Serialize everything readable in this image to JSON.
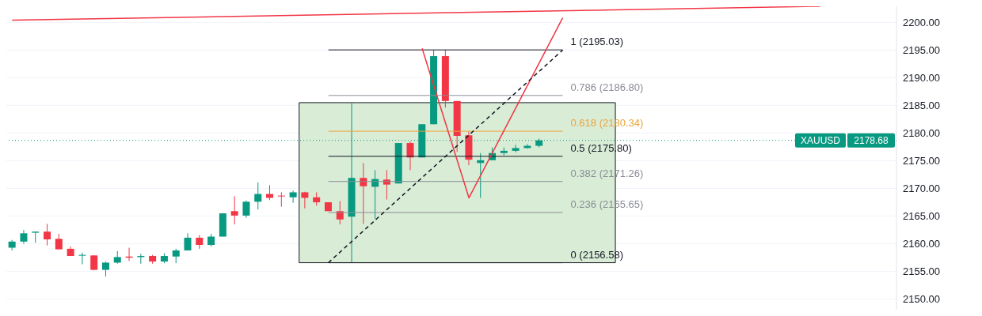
{
  "chart_data": {
    "type": "candlestick",
    "categories": [
      null,
      null,
      null,
      null,
      null,
      null,
      null,
      null,
      null,
      null,
      null,
      null,
      null,
      null,
      null,
      null,
      null,
      null,
      null,
      null,
      null,
      null,
      null,
      null,
      null,
      null,
      null,
      null,
      null,
      null,
      null,
      null,
      null,
      null,
      null,
      null,
      null,
      null,
      null,
      null,
      null,
      null,
      null,
      null,
      null,
      null,
      null,
      null,
      null,
      null,
      null,
      null,
      null,
      null,
      null,
      null,
      null,
      null,
      null,
      null,
      null,
      null,
      null,
      null,
      null,
      null,
      null,
      null,
      null,
      null,
      null,
      null,
      null,
      null,
      null,
      null
    ],
    "ohlc": [
      [
        2159.3,
        2160.7,
        2158.8,
        2160.4
      ],
      [
        2160.4,
        2162.5,
        2160.0,
        2161.9
      ],
      [
        2162.0,
        2162.2,
        2160.2,
        2162.2
      ],
      [
        2162.2,
        2163.6,
        2159.7,
        2160.8
      ],
      [
        2160.9,
        2161.8,
        2159.0,
        2159.0
      ],
      [
        2159.1,
        2159.5,
        2157.8,
        2157.8
      ],
      [
        2157.9,
        2158.4,
        2156.3,
        2158.0
      ],
      [
        2157.9,
        2157.9,
        2155.2,
        2155.3
      ],
      [
        2155.3,
        2156.8,
        2154.1,
        2156.6
      ],
      [
        2156.6,
        2158.7,
        2156.4,
        2157.6
      ],
      [
        2157.7,
        2159.3,
        2156.9,
        2157.5
      ],
      [
        2157.6,
        2158.2,
        2156.4,
        2157.8
      ],
      [
        2157.8,
        2158.0,
        2156.4,
        2156.8
      ],
      [
        2156.8,
        2158.3,
        2156.5,
        2157.8
      ],
      [
        2157.7,
        2159.1,
        2156.5,
        2158.8
      ],
      [
        2158.8,
        2161.9,
        2158.8,
        2161.1
      ],
      [
        2161.1,
        2161.6,
        2159.1,
        2159.8
      ],
      [
        2159.8,
        2161.8,
        2159.5,
        2161.3
      ],
      [
        2161.3,
        2165.5,
        2161.3,
        2165.5
      ],
      [
        2165.9,
        2168.6,
        2163.5,
        2165.1
      ],
      [
        2165.1,
        2167.8,
        2164.7,
        2167.6
      ],
      [
        2167.6,
        2171.1,
        2166.2,
        2169.0
      ],
      [
        2169.0,
        2170.6,
        2167.9,
        2168.3
      ],
      [
        2168.7,
        2169.3,
        2166.7,
        2168.6
      ],
      [
        2168.4,
        2169.6,
        2167.4,
        2169.3
      ],
      [
        2169.3,
        2169.4,
        2166.4,
        2168.3
      ],
      [
        2168.4,
        2169.3,
        2166.9,
        2167.5
      ],
      [
        2167.5,
        2167.5,
        2165.9,
        2165.9
      ],
      [
        2165.9,
        2167.7,
        2163.5,
        2164.4
      ],
      [
        2164.9,
        2185.4,
        2156.6,
        2171.9
      ],
      [
        2171.9,
        2174.6,
        2163.6,
        2170.4
      ],
      [
        2170.3,
        2173.3,
        2164.5,
        2171.7
      ],
      [
        2171.6,
        2173.3,
        2168.0,
        2170.7
      ],
      [
        2170.9,
        2178.2,
        2170.9,
        2178.2
      ],
      [
        2178.2,
        2178.5,
        2173.3,
        2175.6
      ],
      [
        2175.6,
        2181.6,
        2175.6,
        2181.6
      ],
      [
        2181.6,
        2195.0,
        2181.6,
        2193.9
      ],
      [
        2193.9,
        2195.0,
        2184.6,
        2185.8
      ],
      [
        2185.8,
        2185.8,
        2176.6,
        2179.5
      ],
      [
        2179.6,
        2180.3,
        2174.2,
        2175.2
      ],
      [
        2174.6,
        2176.4,
        2168.3,
        2175.1
      ],
      [
        2175.1,
        2177.4,
        2175.1,
        2176.4
      ],
      [
        2176.4,
        2177.4,
        2176.0,
        2176.8
      ],
      [
        2176.8,
        2177.9,
        2176.5,
        2177.3
      ],
      [
        2177.3,
        2178.0,
        2177.2,
        2177.7
      ],
      [
        2177.7,
        2179.0,
        2177.4,
        2178.68
      ],
      null,
      null,
      null,
      null,
      null,
      null,
      null,
      null,
      null,
      null,
      null,
      null,
      null,
      null,
      null,
      null,
      null,
      null,
      null,
      null,
      null,
      null,
      null,
      null,
      null,
      null,
      null,
      null,
      null,
      null
    ],
    "colors": [
      "#089981",
      "#089981",
      "#089981",
      "#f23645",
      "#f23645",
      "#f23645",
      "#089981",
      "#f23645",
      "#089981",
      "#089981",
      "#f23645",
      "#089981",
      "#f23645",
      "#089981",
      "#089981",
      "#089981",
      "#f23645",
      "#089981",
      "#089981",
      "#f23645",
      "#089981",
      "#089981",
      "#f23645",
      "#f23645",
      "#089981",
      "#f23645",
      "#f23645",
      "#f23645",
      "#f23645",
      "#089981",
      "#f23645",
      "#089981",
      "#f23645",
      "#089981",
      "#f23645",
      "#089981",
      "#089981",
      "#f23645",
      "#f23645",
      "#f23645",
      "#089981",
      "#089981",
      "#089981",
      "#089981",
      "#089981",
      "#089981",
      null,
      null,
      null,
      null,
      null,
      null,
      null,
      null,
      null,
      null,
      null,
      null,
      null,
      null,
      null,
      null,
      null,
      null,
      null,
      null,
      null,
      null,
      null,
      null,
      null,
      null,
      null,
      null,
      null,
      null
    ],
    "series": [
      {
        "type": "line",
        "color": "#f23645",
        "line_style": "solid",
        "values": [
          2200.4,
          null,
          null,
          null,
          null,
          null,
          null,
          null,
          null,
          null,
          null,
          null,
          null,
          null,
          null,
          null,
          null,
          null,
          null,
          null,
          null,
          null,
          null,
          null,
          null,
          null,
          null,
          null,
          null,
          null,
          null,
          null,
          null,
          null,
          null,
          null,
          null,
          null,
          null,
          null,
          null,
          null,
          null,
          null,
          null,
          null,
          null,
          null,
          null,
          null,
          null,
          null,
          null,
          null,
          null,
          null,
          null,
          null,
          null,
          null,
          null,
          null,
          null,
          null,
          null,
          null,
          null,
          null,
          null,
          2202.9,
          null,
          null,
          null,
          null,
          null,
          null
        ]
      },
      {
        "type": "line",
        "color": "#f23645",
        "line_style": "solid",
        "values": [
          null,
          null,
          null,
          null,
          null,
          null,
          null,
          null,
          null,
          null,
          null,
          null,
          null,
          null,
          null,
          null,
          null,
          null,
          null,
          null,
          null,
          null,
          null,
          null,
          null,
          null,
          null,
          null,
          null,
          null,
          null,
          null,
          null,
          null,
          null,
          2195.3,
          null,
          null,
          null,
          2168.3,
          null,
          null,
          null,
          null,
          null,
          null,
          null,
          2200.8,
          null,
          null,
          null,
          null,
          null,
          null,
          null,
          null,
          null,
          null,
          null,
          null,
          null,
          null,
          null,
          null,
          null,
          null,
          null,
          null,
          null,
          null,
          null,
          null,
          null,
          null,
          null,
          null
        ]
      },
      {
        "type": "line",
        "color": "#131722",
        "line_style": "dashed",
        "values": [
          null,
          null,
          null,
          null,
          null,
          null,
          null,
          null,
          null,
          null,
          null,
          null,
          null,
          null,
          null,
          null,
          null,
          null,
          null,
          null,
          null,
          null,
          null,
          null,
          null,
          null,
          null,
          2156.6,
          null,
          null,
          null,
          null,
          null,
          null,
          null,
          null,
          null,
          null,
          null,
          null,
          null,
          null,
          null,
          null,
          null,
          null,
          null,
          2195.0,
          null,
          null,
          null,
          null,
          null,
          null,
          null,
          null,
          null,
          null,
          null,
          null,
          null,
          null,
          null,
          null,
          null,
          null,
          null,
          null,
          null,
          null,
          null,
          null,
          null,
          null,
          null,
          null
        ]
      }
    ],
    "ylim": [
      2148.1,
      2202.9
    ],
    "yticks": [
      {
        "value": 2150,
        "label": "2150.00"
      },
      {
        "value": 2155,
        "label": "2155.00"
      },
      {
        "value": 2160,
        "label": "2160.00"
      },
      {
        "value": 2165,
        "label": "2165.00"
      },
      {
        "value": 2170,
        "label": "2170.00"
      },
      {
        "value": 2175,
        "label": "2175.00"
      },
      {
        "value": 2180,
        "label": "2180.00"
      },
      {
        "value": 2185,
        "label": "2185.00"
      },
      {
        "value": 2190,
        "label": "2190.00"
      },
      {
        "value": 2195,
        "label": "2195.00"
      },
      {
        "value": 2200,
        "label": "2200.00"
      }
    ],
    "grid": "y",
    "tick_labels": "y",
    "ref_lines": [
      {
        "axis": "y",
        "value": 2195.03,
        "label": "1 (2195.03)",
        "color": "#131722",
        "line_style": "solid"
      },
      {
        "axis": "y",
        "value": 2186.8,
        "label": "0.786 (2186.80)",
        "color": "#8a8d96",
        "line_style": "solid"
      },
      {
        "axis": "y",
        "value": 2180.34,
        "label": "0.618 (2180.34)",
        "color": "#f0a43a",
        "line_style": "solid"
      },
      {
        "axis": "y",
        "value": 2175.8,
        "label": "0.5 (2175.80)",
        "color": "#131722",
        "line_style": "solid"
      },
      {
        "axis": "y",
        "value": 2171.26,
        "label": "0.382 (2171.26)",
        "color": "#8a8d96",
        "line_style": "solid"
      },
      {
        "axis": "y",
        "value": 2165.65,
        "label": "0.236 (2165.65)",
        "color": "#8a8d96",
        "line_style": "solid"
      },
      {
        "axis": "y",
        "value": 2156.58,
        "label": "0 (2156.58)",
        "color": "#131722",
        "line_style": "solid"
      },
      {
        "axis": "y",
        "value": 2178.68,
        "label": "XAUUSD",
        "color": "#089981",
        "line_style": "dotted"
      }
    ],
    "annotations": [
      {
        "text": "2178.68",
        "y": 2178.68
      }
    ],
    "bands": [
      {
        "axis": "y",
        "from": 2156.58,
        "to": 2185.5,
        "color": "#d8ecd6"
      }
    ]
  }
}
